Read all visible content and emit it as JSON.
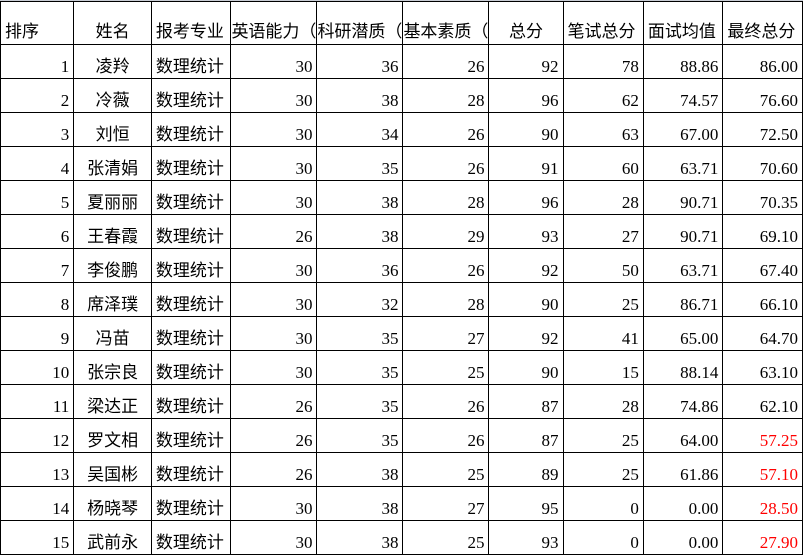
{
  "headers": [
    "排序",
    "姓名",
    "报考专业",
    "英语能力（",
    "科研潜质（",
    "基本素质（",
    "总分",
    "笔试总分",
    "面试均值",
    "最终总分"
  ],
  "colors": {
    "below_threshold": "#ff0000"
  },
  "rows": [
    {
      "rank": "1",
      "name": "凌羚",
      "major": "数理统计",
      "english": "30",
      "research": "36",
      "basic": "26",
      "total": "92",
      "written": "78",
      "interview": "88.86",
      "final": "86.00",
      "red": false
    },
    {
      "rank": "2",
      "name": "冷薇",
      "major": "数理统计",
      "english": "30",
      "research": "38",
      "basic": "28",
      "total": "96",
      "written": "62",
      "interview": "74.57",
      "final": "76.60",
      "red": false
    },
    {
      "rank": "3",
      "name": "刘恒",
      "major": "数理统计",
      "english": "30",
      "research": "34",
      "basic": "26",
      "total": "90",
      "written": "63",
      "interview": "67.00",
      "final": "72.50",
      "red": false
    },
    {
      "rank": "4",
      "name": "张清娟",
      "major": "数理统计",
      "english": "30",
      "research": "35",
      "basic": "26",
      "total": "91",
      "written": "60",
      "interview": "63.71",
      "final": "70.60",
      "red": false
    },
    {
      "rank": "5",
      "name": "夏丽丽",
      "major": "数理统计",
      "english": "30",
      "research": "38",
      "basic": "28",
      "total": "96",
      "written": "28",
      "interview": "90.71",
      "final": "70.35",
      "red": false
    },
    {
      "rank": "6",
      "name": "王春霞",
      "major": "数理统计",
      "english": "26",
      "research": "38",
      "basic": "29",
      "total": "93",
      "written": "27",
      "interview": "90.71",
      "final": "69.10",
      "red": false
    },
    {
      "rank": "7",
      "name": "李俊鹏",
      "major": "数理统计",
      "english": "30",
      "research": "36",
      "basic": "26",
      "total": "92",
      "written": "50",
      "interview": "63.71",
      "final": "67.40",
      "red": false
    },
    {
      "rank": "8",
      "name": "席泽璞",
      "major": "数理统计",
      "english": "30",
      "research": "32",
      "basic": "28",
      "total": "90",
      "written": "25",
      "interview": "86.71",
      "final": "66.10",
      "red": false
    },
    {
      "rank": "9",
      "name": "冯苗",
      "major": "数理统计",
      "english": "30",
      "research": "35",
      "basic": "27",
      "total": "92",
      "written": "41",
      "interview": "65.00",
      "final": "64.70",
      "red": false
    },
    {
      "rank": "10",
      "name": "张宗良",
      "major": "数理统计",
      "english": "30",
      "research": "35",
      "basic": "25",
      "total": "90",
      "written": "15",
      "interview": "88.14",
      "final": "63.10",
      "red": false
    },
    {
      "rank": "11",
      "name": "梁达正",
      "major": "数理统计",
      "english": "26",
      "research": "35",
      "basic": "26",
      "total": "87",
      "written": "28",
      "interview": "74.86",
      "final": "62.10",
      "red": false
    },
    {
      "rank": "12",
      "name": "罗文相",
      "major": "数理统计",
      "english": "26",
      "research": "35",
      "basic": "26",
      "total": "87",
      "written": "25",
      "interview": "64.00",
      "final": "57.25",
      "red": true
    },
    {
      "rank": "13",
      "name": "吴国彬",
      "major": "数理统计",
      "english": "26",
      "research": "38",
      "basic": "25",
      "total": "89",
      "written": "25",
      "interview": "61.86",
      "final": "57.10",
      "red": true
    },
    {
      "rank": "14",
      "name": "杨晓琴",
      "major": "数理统计",
      "english": "30",
      "research": "38",
      "basic": "27",
      "total": "95",
      "written": "0",
      "interview": "0.00",
      "final": "28.50",
      "red": true
    },
    {
      "rank": "15",
      "name": "武前永",
      "major": "数理统计",
      "english": "30",
      "research": "38",
      "basic": "25",
      "total": "93",
      "written": "0",
      "interview": "0.00",
      "final": "27.90",
      "red": true
    }
  ]
}
